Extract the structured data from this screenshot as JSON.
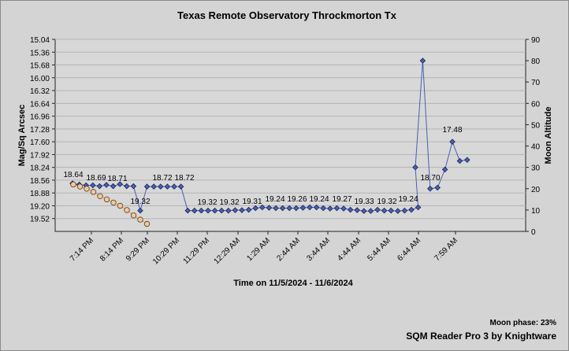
{
  "chart_data": {
    "type": "line",
    "title": "Texas Remote Observatory   Throckmorton Tx",
    "xlabel": "Time on 11/5/2024 - 11/6/2024",
    "ylabel": "Mag/Sq Arcsec",
    "y2label": "Moon Altitude",
    "x_tick_labels": [
      "7:14 PM",
      "8:14 PM",
      "9:29 PM",
      "10:29 PM",
      "11:29 PM",
      "12:29 AM",
      "1:29 AM",
      "2:44 AM",
      "3:44 AM",
      "4:44 AM",
      "5:44 AM",
      "6:44 AM",
      "7:59 AM"
    ],
    "y_ticks": [
      "15.04",
      "15.36",
      "15.68",
      "16.00",
      "16.32",
      "16.64",
      "16.96",
      "17.28",
      "17.60",
      "17.92",
      "18.24",
      "18.56",
      "18.88",
      "19.20",
      "19.52"
    ],
    "ylim": [
      15.04,
      19.84
    ],
    "y2_ticks": [
      0,
      10,
      20,
      30,
      40,
      50,
      60,
      70,
      80,
      90
    ],
    "y2lim": [
      0,
      90
    ],
    "grid": true,
    "series": [
      {
        "axis": "left",
        "color": "#4a5fb5",
        "marker": "diamond",
        "values": [
          18.64,
          18.67,
          18.69,
          18.69,
          18.71,
          18.68,
          18.71,
          18.66,
          18.71,
          18.71,
          19.32,
          18.72,
          18.72,
          18.72,
          18.72,
          18.72,
          18.72,
          19.32,
          19.32,
          19.32,
          19.32,
          19.32,
          19.32,
          19.32,
          19.31,
          19.31,
          19.3,
          19.26,
          19.24,
          19.25,
          19.26,
          19.26,
          19.26,
          19.26,
          19.25,
          19.24,
          19.24,
          19.26,
          19.27,
          19.26,
          19.27,
          19.3,
          19.31,
          19.33,
          19.33,
          19.3,
          19.32,
          19.32,
          19.33,
          19.32,
          19.3,
          19.24
        ]
      },
      {
        "axis": "right",
        "color": "#4a5fb5",
        "marker": "diamond",
        "values": [
          30,
          80,
          20,
          20.5,
          29,
          42,
          33,
          33.5
        ]
      },
      {
        "axis": "right",
        "color": "#f2c79a",
        "marker": "circle",
        "values": [
          22,
          21,
          20,
          18.5,
          16.5,
          15,
          13.5,
          12,
          10,
          7.5,
          5.5,
          3.5
        ]
      }
    ],
    "data_labels": [
      "18.64",
      "18.69",
      "18.71",
      "19.32",
      "18.72",
      "18.72",
      "19.32",
      "19.32",
      "19.31",
      "19.24",
      "19.26",
      "19.24",
      "19.27",
      "19.33",
      "19.32",
      "19.24",
      "18.70",
      "17.48"
    ]
  },
  "footer": {
    "moon_phase": "Moon phase: 23%",
    "credit": "SQM Reader Pro 3 by Knightware"
  }
}
